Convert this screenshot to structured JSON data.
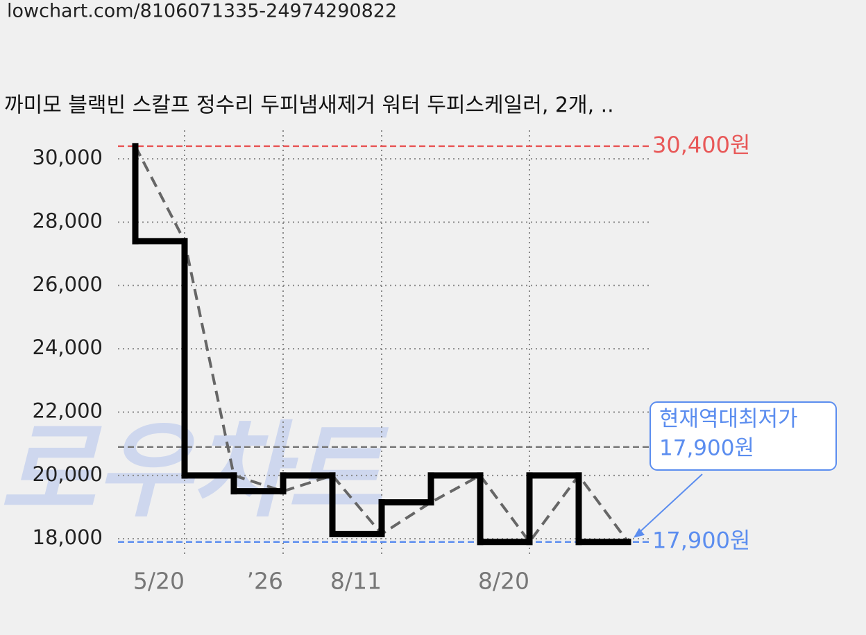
{
  "url": "lowchart.com/8106071335-24974290822",
  "chart_data": {
    "type": "step",
    "title": "까미모 블랙빈 스칼프 정수리 두피냄새제거 워터 두피스케일러, 2개, ..",
    "categories": [
      null,
      "5/20",
      null,
      "’26",
      null,
      "8/11",
      null,
      null,
      "8/20",
      null,
      null
    ],
    "values": [
      30400,
      27400,
      20000,
      19500,
      20000,
      18150,
      19150,
      20000,
      17900,
      20000,
      17900
    ],
    "color": "#000000",
    "trend_color": "#666666",
    "ylim": [
      17500,
      30900
    ],
    "yticks": [
      {
        "value": 18000,
        "label": "18,000"
      },
      {
        "value": 20000,
        "label": "20,000"
      },
      {
        "value": 22000,
        "label": "22,000"
      },
      {
        "value": 24000,
        "label": "24,000"
      },
      {
        "value": 26000,
        "label": "26,000"
      },
      {
        "value": 28000,
        "label": "28,000"
      },
      {
        "value": 30000,
        "label": "30,000"
      }
    ],
    "grid": true,
    "average_line": 20900,
    "max_line": {
      "value": 30400,
      "label": "30,400원",
      "color": "#e85757"
    },
    "min_line": {
      "value": 17900,
      "label": "17,900원",
      "color": "#5b8def"
    },
    "annotation": [
      "현재역대최저가",
      "17,900원"
    ],
    "watermark": "로우차트"
  }
}
